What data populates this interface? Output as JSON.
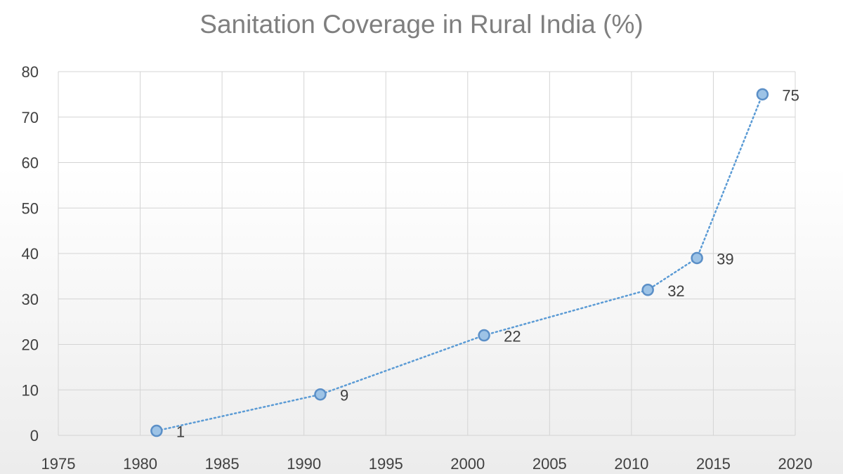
{
  "chart_data": {
    "type": "scatter",
    "title": "Sanitation Coverage  in Rural India (%)",
    "xlabel": "",
    "ylabel": "",
    "xlim": [
      1975,
      2020
    ],
    "ylim": [
      0,
      80
    ],
    "x_ticks": [
      1975,
      1980,
      1985,
      1990,
      1995,
      2000,
      2005,
      2010,
      2015,
      2020
    ],
    "y_ticks": [
      0,
      10,
      20,
      30,
      40,
      50,
      60,
      70,
      80
    ],
    "grid": true,
    "legend": "none",
    "series": [
      {
        "name": "Sanitation Coverage",
        "x": [
          1981,
          1991,
          2001,
          2011,
          2014,
          2018
        ],
        "y": [
          1,
          9,
          22,
          32,
          39,
          75
        ],
        "labels": [
          "1",
          "9",
          "22",
          "32",
          "39",
          "75"
        ],
        "color": "#5b9bd5",
        "marker_fill": "#9dc3e6",
        "line_style": "dotted"
      }
    ]
  }
}
